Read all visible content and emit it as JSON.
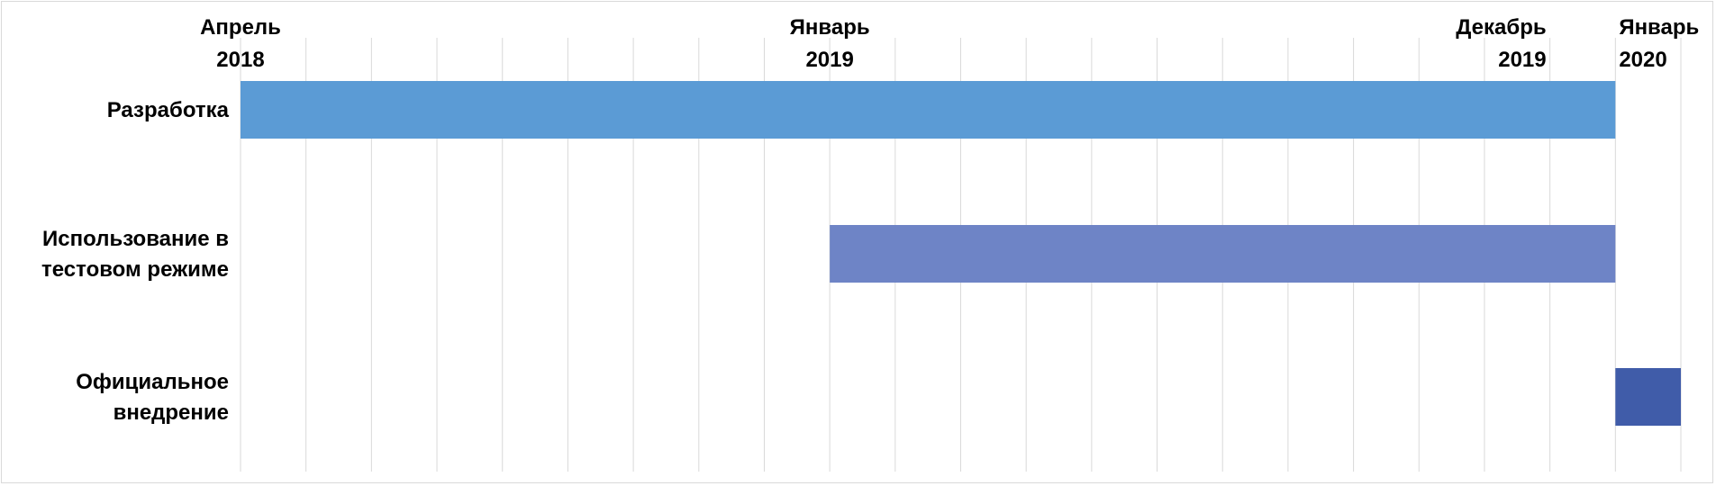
{
  "chart_data": {
    "type": "gantt",
    "x_axis": {
      "range": [
        "2018-04",
        "2020-02"
      ],
      "position": "top",
      "grid": true,
      "tick_labels": [
        {
          "month": "2018-04",
          "lines": [
            "Апрель",
            "2018"
          ],
          "anchor": "middle"
        },
        {
          "month": "2019-01",
          "lines": [
            "Январь",
            "2019"
          ],
          "anchor": "middle"
        },
        {
          "month": "2019-12",
          "lines": [
            "Декабрь",
            "2019"
          ],
          "anchor": "end"
        },
        {
          "month": "2020-01",
          "lines": [
            "Январь",
            "2020"
          ],
          "anchor": "start"
        }
      ]
    },
    "tasks": [
      {
        "name": [
          "Разработка"
        ],
        "start": "2018-04",
        "end": "2020-01",
        "color": "#5b9bd5"
      },
      {
        "name": [
          "Использование в",
          "тестовом режиме"
        ],
        "start": "2019-01",
        "end": "2020-01",
        "color": "#6e84c6"
      },
      {
        "name": [
          "Официальное",
          "внедрение"
        ],
        "start": "2020-01",
        "end": "2020-02",
        "color": "#405ca9"
      }
    ],
    "gridline_color": "#d9d9d9",
    "legend": "none"
  }
}
